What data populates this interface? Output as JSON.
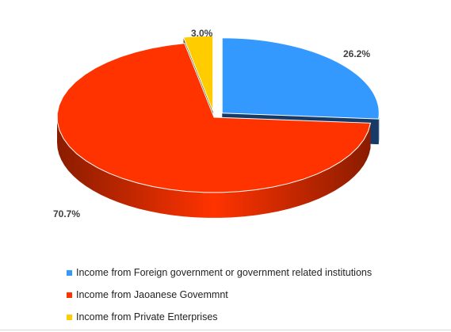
{
  "chart_data": {
    "type": "pie",
    "style": "3d-exploded",
    "title": "",
    "legend_position": "bottom",
    "series": [
      {
        "name": "Income from Foreign government or government related institutions",
        "value": 26.2,
        "label": "26.2%",
        "color": "#3399ff",
        "side_color": "#173a66",
        "exploded": true
      },
      {
        "name": "Income from Jaoanese Govemmnt",
        "value": 70.7,
        "label": "70.7%",
        "color": "#ff3300",
        "side_color": "#8a1c00",
        "exploded": false
      },
      {
        "name": "Income from Private Enterprises",
        "value": 3.0,
        "label": "3.0%",
        "color": "#ffcc00",
        "side_color": "#6e5200",
        "exploded": true
      }
    ]
  }
}
